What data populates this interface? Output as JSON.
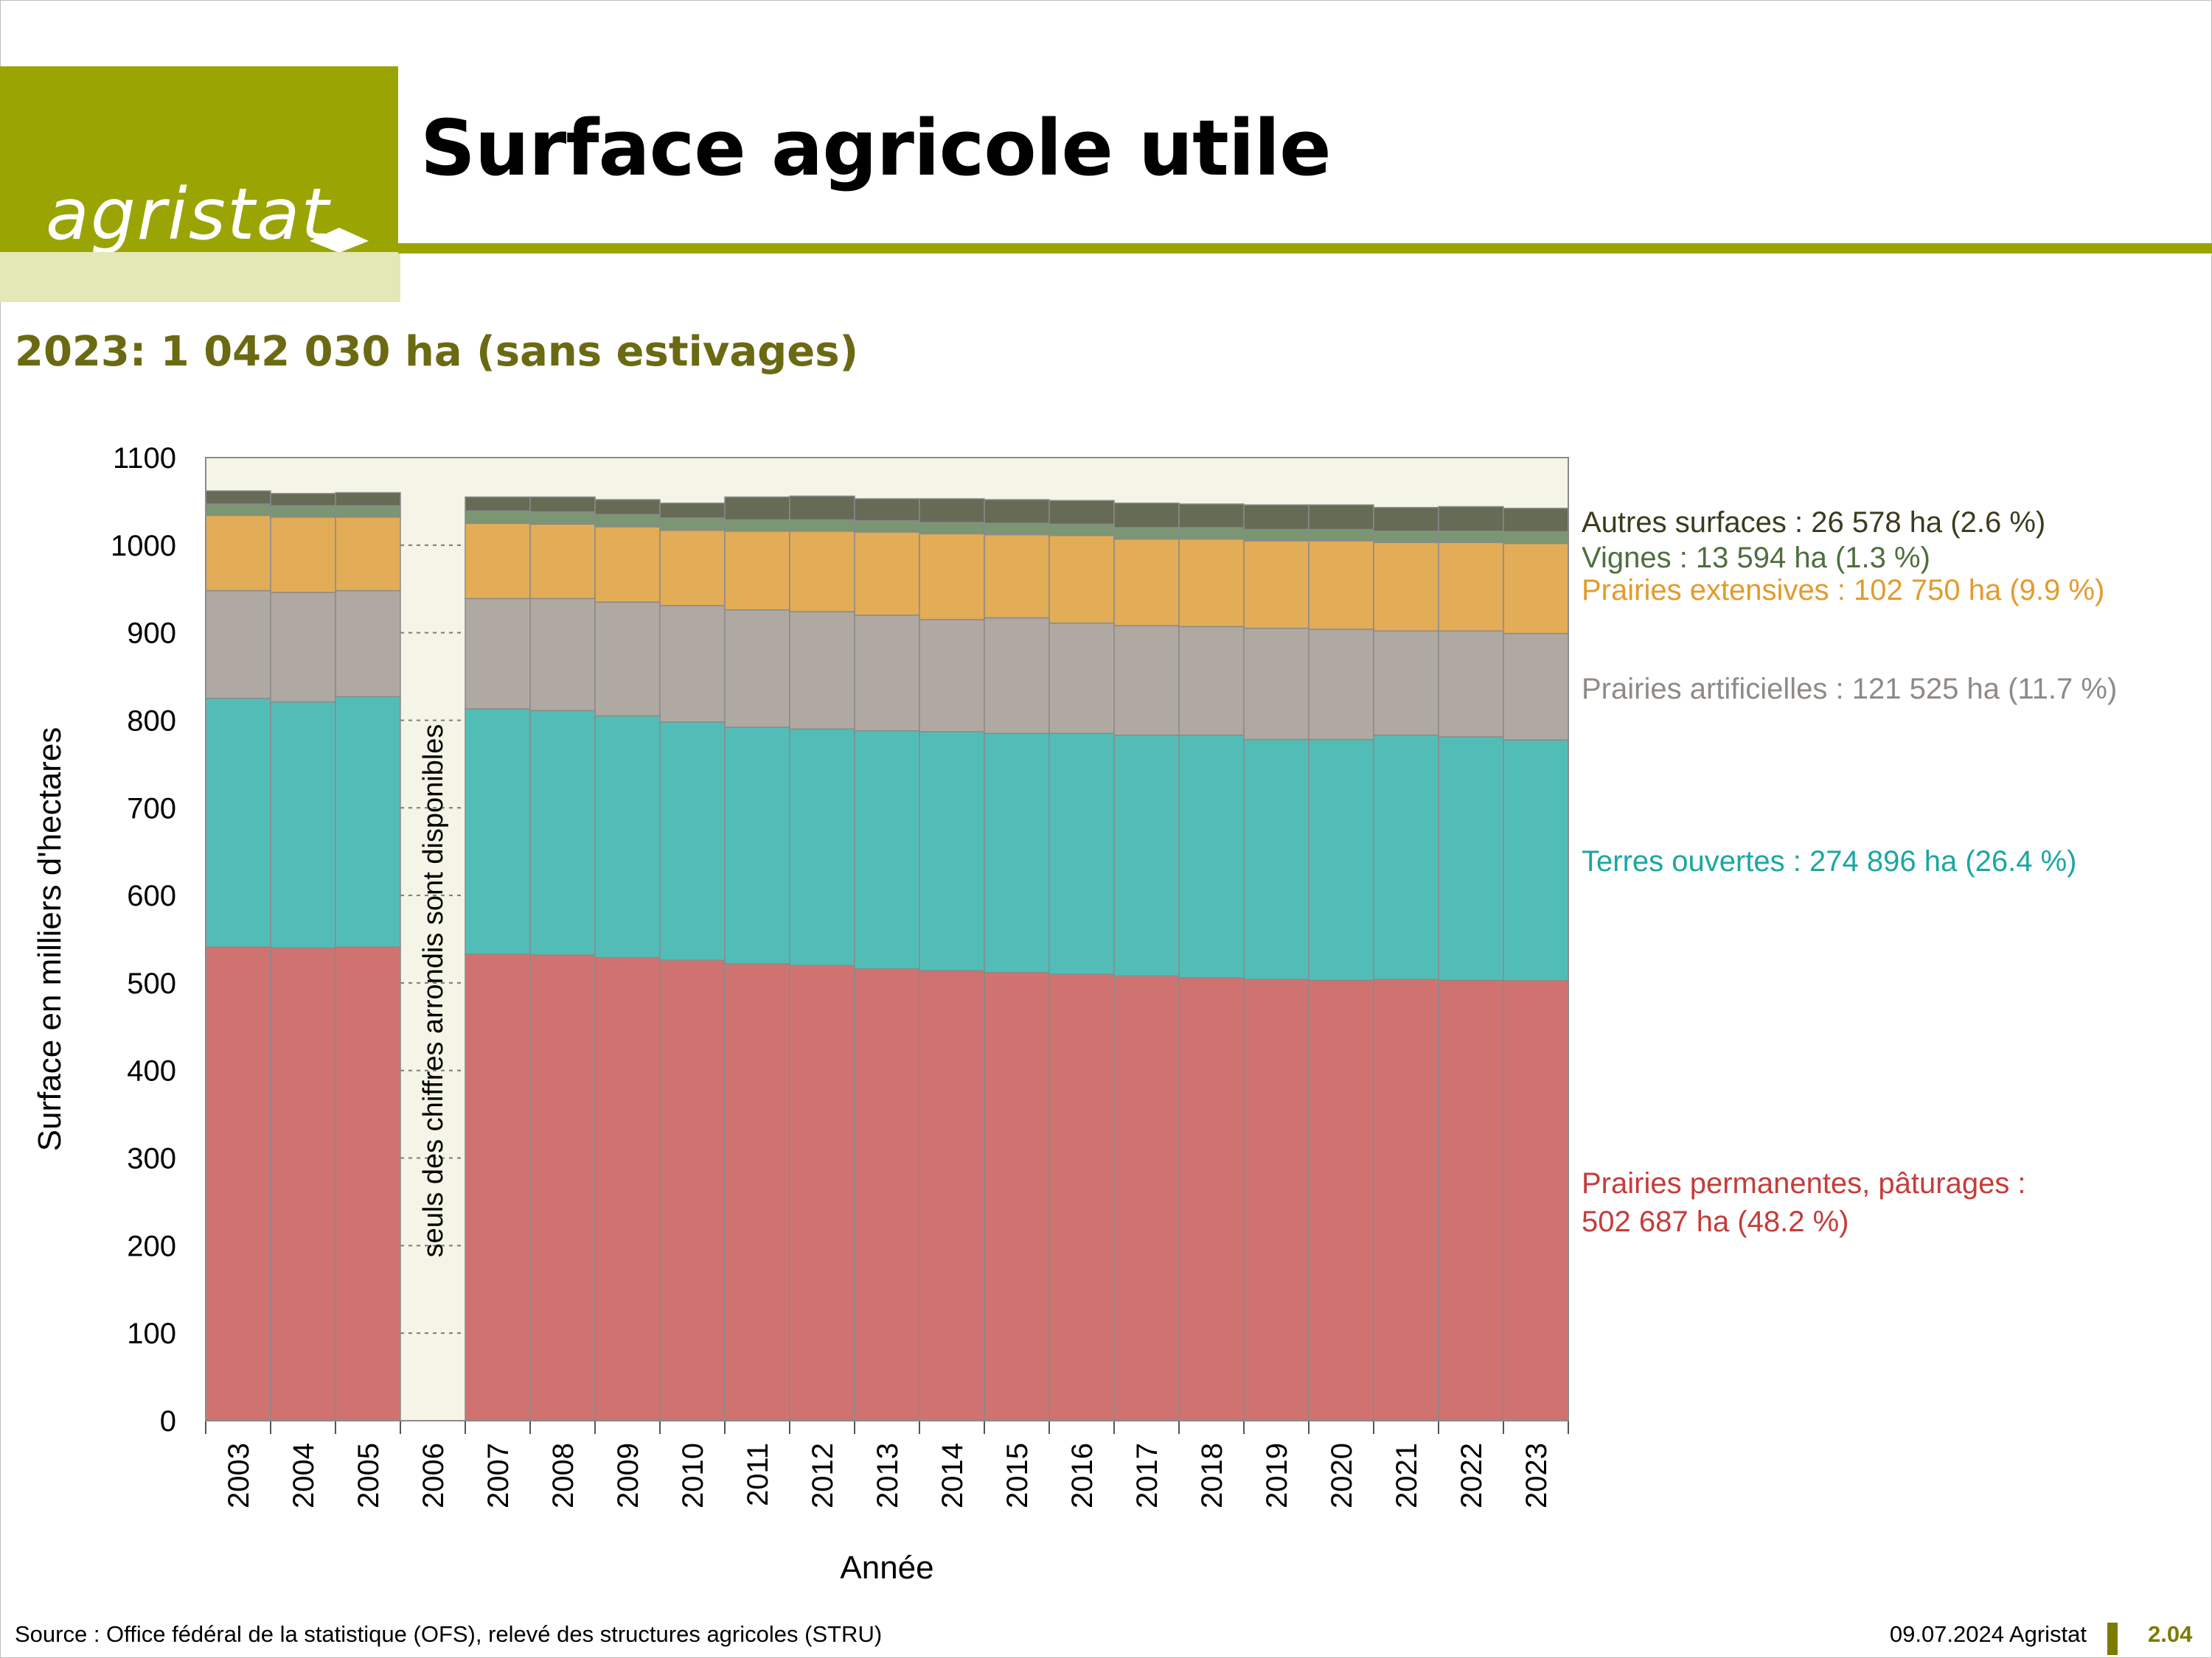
{
  "header": {
    "logo_text": "agristat",
    "title": "Surface agricole utile"
  },
  "subtitle": "2023: 1 042 030 ha (sans estivages)",
  "footer": {
    "source": "Source : Office fédéral de la statistique (OFS), relevé des structures agricoles (STRU)",
    "date": "09.07.2024 Agristat",
    "page": "2.04"
  },
  "colors": {
    "brand": "#9aa503",
    "brand_light": "#e3e8b6",
    "plot_bg": "#f4f5e6"
  },
  "chart_data": {
    "type": "bar",
    "stacked": true,
    "xlabel": "Année",
    "ylabel": "Surface en milliers d'hectares",
    "ylim": [
      0,
      1100
    ],
    "yticks": [
      0,
      100,
      200,
      300,
      400,
      500,
      600,
      700,
      800,
      900,
      1000,
      1100
    ],
    "grid": true,
    "categories": [
      "2003",
      "2004",
      "2005",
      "2006",
      "2007",
      "2008",
      "2009",
      "2010",
      "2011",
      "2012",
      "2013",
      "2014",
      "2015",
      "2016",
      "2017",
      "2018",
      "2019",
      "2020",
      "2021",
      "2022",
      "2023"
    ],
    "annotation": "seuls des chiffres arrondis sont disponibles",
    "annotation_category": "2006",
    "series": [
      {
        "name": "Prairies permanentes, pâturages",
        "color": "#d07370",
        "values": [
          541,
          540,
          541,
          null,
          533,
          532,
          529,
          526,
          522,
          520,
          516,
          514,
          512,
          510,
          508,
          506,
          504,
          503,
          504,
          503,
          502.7
        ]
      },
      {
        "name": "Terres ouvertes",
        "color": "#52bdb7",
        "values": [
          284,
          281,
          286,
          null,
          280,
          279,
          276,
          272,
          270,
          270,
          272,
          273,
          273,
          275,
          275,
          277,
          274,
          275,
          279,
          278,
          274.9
        ]
      },
      {
        "name": "Prairies artificielles",
        "color": "#b0a9a2",
        "values": [
          123,
          125,
          121,
          null,
          126,
          128,
          130,
          133,
          134,
          134,
          132,
          128,
          132,
          126,
          125,
          124,
          127,
          126,
          119,
          121,
          121.5
        ]
      },
      {
        "name": "Prairies extensives",
        "color": "#e3ac56",
        "values": [
          86,
          86,
          84,
          null,
          86,
          85,
          86,
          86,
          90,
          92,
          95,
          98,
          95,
          100,
          99,
          100,
          100,
          101,
          101,
          101,
          102.8
        ]
      },
      {
        "name": "Vignes",
        "color": "#7a9673",
        "values": [
          13,
          13,
          13,
          null,
          14,
          14,
          14,
          14,
          13,
          13,
          13,
          13,
          13,
          13,
          13,
          13,
          13,
          13,
          13,
          13,
          13.6
        ]
      },
      {
        "name": "Autres surfaces",
        "color": "#656b55",
        "values": [
          15,
          14,
          15,
          null,
          16,
          17,
          17,
          17,
          26,
          27,
          25,
          27,
          27,
          27,
          28,
          27,
          28,
          28,
          27,
          28,
          26.6
        ]
      }
    ],
    "legend": [
      {
        "text": "Autres surfaces : 26 578 ha (2.6 %)",
        "color": "#3b3b1e"
      },
      {
        "text": "Vignes : 13 594 ha (1.3 %)",
        "color": "#4f6e3e"
      },
      {
        "text": "Prairies extensives : 102 750 ha (9.9 %)",
        "color": "#e39b2c"
      },
      {
        "text": "Prairies artificielles : 121 525 ha (11.7 %)",
        "color": "#8f8a86"
      },
      {
        "text": "Terres ouvertes : 274 896 ha (26.4 %)",
        "color": "#1aa7a1"
      },
      {
        "text": "Prairies permanentes, pâturages :",
        "color": "#c53c3a"
      },
      {
        "text": "502 687 ha (48.2 %)",
        "color": "#c53c3a"
      }
    ]
  }
}
